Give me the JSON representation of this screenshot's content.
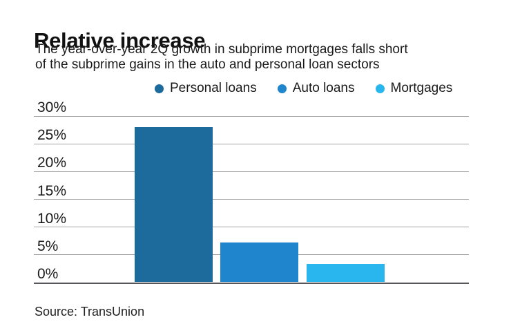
{
  "header": {
    "title": "Relative increase",
    "subtitle_line1": "The year-over-year 2Q growth in subprime mortgages falls short",
    "subtitle_line2": "of the subprime gains in the auto and personal loan sectors"
  },
  "legend": [
    {
      "label": "Personal loans",
      "color": "#1d6a9d"
    },
    {
      "label": "Auto loans",
      "color": "#1f86cd"
    },
    {
      "label": "Mortgages",
      "color": "#29b6ef"
    }
  ],
  "chart_data": {
    "type": "bar",
    "title": "Relative increase",
    "categories": [
      "Personal loans",
      "Auto loans",
      "Mortgages"
    ],
    "values": [
      28,
      7.2,
      3.3
    ],
    "unit": "%",
    "series": [
      {
        "name": "Personal loans",
        "value": 28,
        "color": "#1d6a9d"
      },
      {
        "name": "Auto loans",
        "value": 7.2,
        "color": "#1f86cd"
      },
      {
        "name": "Mortgages",
        "value": 3.3,
        "color": "#29b6ef"
      }
    ],
    "ylim": [
      0,
      30
    ],
    "y_ticks": [
      30,
      25,
      20,
      15,
      10,
      5,
      0
    ],
    "y_tick_labels": [
      "30%",
      "25%",
      "20%",
      "15%",
      "10%",
      "5%",
      "0%"
    ],
    "grid": "horizontal",
    "legend_position": "top",
    "grid_color": "#a0a2a5",
    "baseline_color": "#55565a"
  },
  "footer": {
    "source": "Source: TransUnion"
  }
}
